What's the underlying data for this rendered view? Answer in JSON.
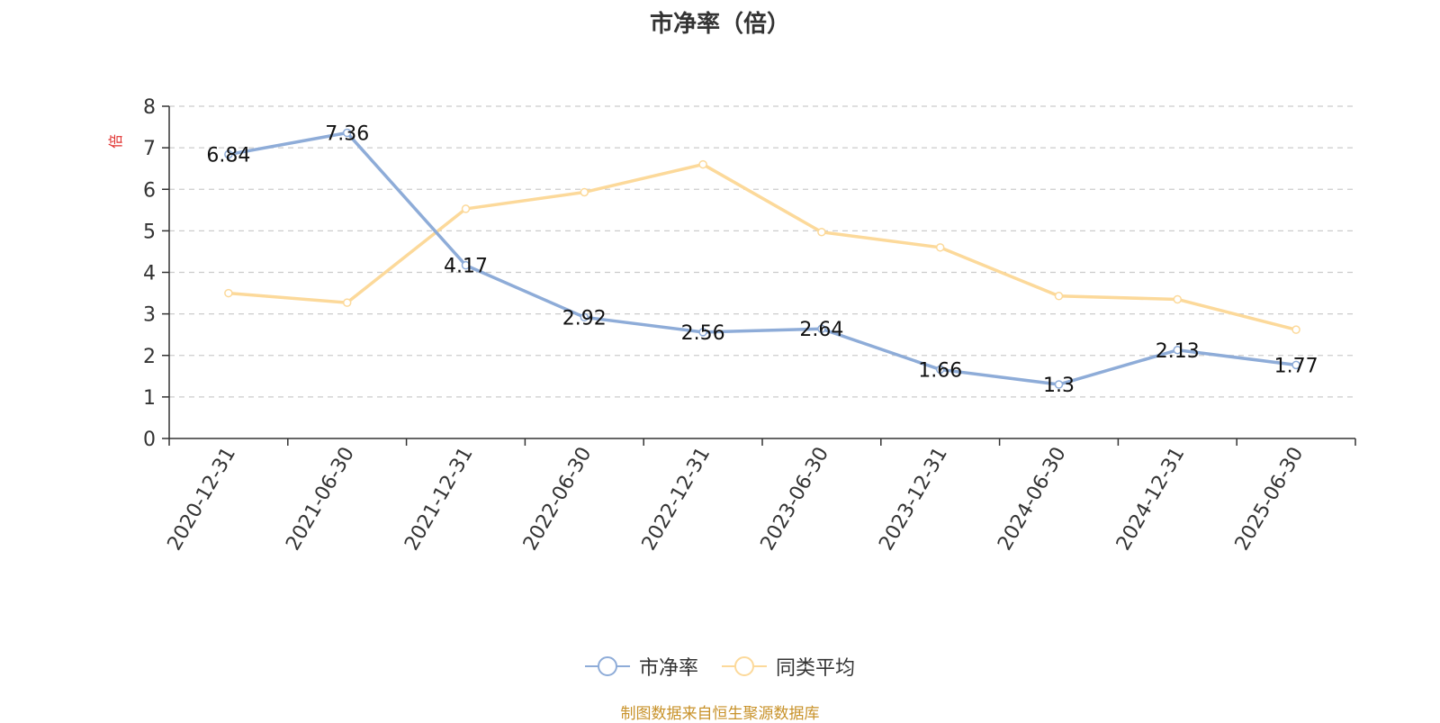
{
  "chart_data": {
    "type": "line",
    "title": "市净率（倍）",
    "ylabel": "倍",
    "xlabel": "",
    "ylim": [
      0,
      8
    ],
    "yticks": [
      "0",
      "1",
      "2",
      "3",
      "4",
      "5",
      "6",
      "7",
      "8"
    ],
    "grid": true,
    "legend_position": "bottom",
    "categories": [
      "2020-12-31",
      "2021-06-30",
      "2021-12-31",
      "2022-06-30",
      "2022-12-31",
      "2023-06-30",
      "2023-12-31",
      "2024-06-30",
      "2024-12-31",
      "2025-06-30"
    ],
    "series": [
      {
        "name": "市净率",
        "color": "#8eacd8",
        "show_labels": true,
        "values": [
          6.84,
          7.36,
          4.17,
          2.92,
          2.56,
          2.64,
          1.66,
          1.3,
          2.13,
          1.77
        ],
        "labels": [
          "6.84",
          "7.36",
          "4.17",
          "2.92",
          "2.56",
          "2.64",
          "1.66",
          "1.3",
          "2.13",
          "1.77"
        ]
      },
      {
        "name": "同类平均",
        "color": "#fcd99a",
        "show_labels": false,
        "values": [
          3.5,
          3.27,
          5.53,
          5.93,
          6.6,
          4.97,
          4.6,
          3.43,
          3.35,
          2.62
        ]
      }
    ]
  },
  "footer": {
    "source": "制图数据来自恒生聚源数据库"
  }
}
